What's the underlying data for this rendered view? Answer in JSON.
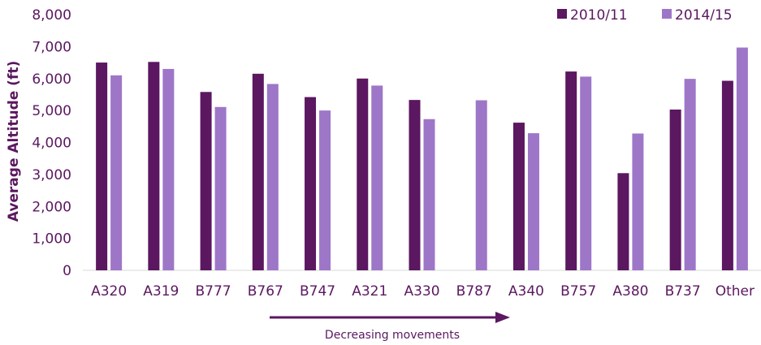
{
  "chart_data": {
    "type": "bar",
    "title": "",
    "xlabel": "",
    "ylabel": "Average Altitude (ft)",
    "ylim": [
      0,
      8000
    ],
    "yticks": [
      "0",
      "1,000",
      "2,000",
      "3,000",
      "4,000",
      "5,000",
      "6,000",
      "7,000",
      "8,000"
    ],
    "categories": [
      "A320",
      "A319",
      "B777",
      "B767",
      "B747",
      "A321",
      "A330",
      "B787",
      "A340",
      "B757",
      "A380",
      "B737",
      "Other"
    ],
    "series": [
      {
        "name": "2010/11",
        "color": "#5b1760",
        "values": [
          6500,
          6520,
          5580,
          6150,
          5420,
          6000,
          5330,
          null,
          4620,
          6220,
          3040,
          5030,
          5930
        ]
      },
      {
        "name": "2014/15",
        "color": "#9e76c8",
        "values": [
          6100,
          6300,
          5110,
          5830,
          5000,
          5780,
          4730,
          5320,
          4290,
          6060,
          4280,
          5990,
          6970
        ]
      }
    ],
    "grid": false,
    "legend": "top-right",
    "annotation": {
      "text": "Decreasing movements",
      "arrow": "right"
    }
  }
}
